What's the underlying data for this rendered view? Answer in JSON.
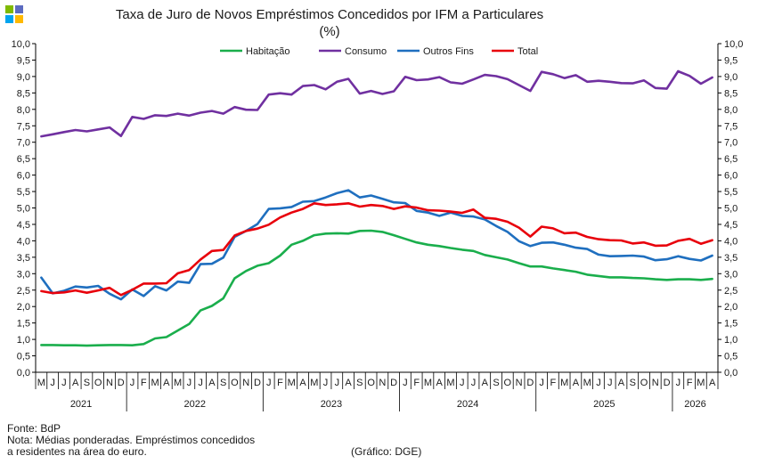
{
  "logo": {
    "colors": [
      "#7fba00",
      "#5c6bc0",
      "#00a4ef",
      "#ffb900"
    ]
  },
  "title": "Taxa de Juro de Novos Empréstimos  Concedidos por IFM a Particulares",
  "subtitle": "(%)",
  "footer": {
    "source": "Fonte: BdP",
    "note_line1": "Nota: Médias ponderadas. Empréstimos concedidos",
    "note_line2": "a residentes na área do euro.",
    "credit": "(Gráfico: DGE)"
  },
  "chart_data": {
    "type": "line",
    "ylim": [
      0,
      10
    ],
    "yticks": [
      "0,0",
      "0,5",
      "1,0",
      "1,5",
      "2,0",
      "2,5",
      "3,0",
      "3,5",
      "4,0",
      "4,5",
      "5,0",
      "5,5",
      "6,0",
      "6,5",
      "7,0",
      "7,5",
      "8,0",
      "8,5",
      "9,0",
      "9,5",
      "10,0"
    ],
    "categories": [
      "M",
      "J",
      "J",
      "A",
      "S",
      "O",
      "N",
      "D",
      "J",
      "F",
      "M",
      "A",
      "M",
      "J",
      "J",
      "A",
      "S",
      "O",
      "N",
      "D",
      "J",
      "F",
      "M",
      "A",
      "M",
      "J",
      "J",
      "A",
      "S",
      "O",
      "N",
      "D",
      "J",
      "F",
      "M",
      "A",
      "M",
      "J",
      "J",
      "A",
      "S",
      "O",
      "N",
      "D",
      "J",
      "F",
      "M",
      "A",
      "M",
      "J",
      "J",
      "A",
      "S",
      "O",
      "N",
      "D",
      "J",
      "F",
      "M",
      "A"
    ],
    "years": [
      {
        "label": "2021",
        "start": 0,
        "end": 7
      },
      {
        "label": "2022",
        "start": 8,
        "end": 19
      },
      {
        "label": "2023",
        "start": 20,
        "end": 31
      },
      {
        "label": "2024",
        "start": 32,
        "end": 43
      },
      {
        "label": "2025",
        "start": 44,
        "end": 55
      },
      {
        "label": "2026",
        "start": 56,
        "end": 59
      }
    ],
    "legend_position": "top",
    "grid": false,
    "series": [
      {
        "name": "Habitação",
        "color": "#1aae4c",
        "values": [
          0.83,
          0.83,
          0.82,
          0.82,
          0.81,
          0.82,
          0.83,
          0.83,
          0.82,
          0.86,
          1.03,
          1.07,
          1.27,
          1.47,
          1.88,
          2.02,
          2.25,
          2.86,
          3.08,
          3.24,
          3.32,
          3.55,
          3.88,
          4.0,
          4.17,
          4.22,
          4.23,
          4.22,
          4.3,
          4.31,
          4.27,
          4.17,
          4.06,
          3.95,
          3.88,
          3.84,
          3.78,
          3.73,
          3.69,
          3.57,
          3.5,
          3.43,
          3.32,
          3.22,
          3.22,
          3.16,
          3.11,
          3.06,
          2.97,
          2.93,
          2.89,
          2.89,
          2.87,
          2.86,
          2.83,
          2.81,
          2.83,
          2.83,
          2.81,
          2.84
        ]
      },
      {
        "name": "Consumo",
        "color": "#7030a0",
        "values": [
          7.18,
          7.24,
          7.31,
          7.37,
          7.33,
          7.39,
          7.45,
          7.19,
          7.77,
          7.71,
          7.82,
          7.8,
          7.87,
          7.81,
          7.9,
          7.95,
          7.87,
          8.07,
          7.99,
          7.98,
          8.45,
          8.49,
          8.45,
          8.71,
          8.74,
          8.61,
          8.84,
          8.93,
          8.48,
          8.56,
          8.47,
          8.55,
          8.99,
          8.89,
          8.91,
          8.98,
          8.82,
          8.78,
          8.91,
          9.05,
          9.01,
          8.92,
          8.74,
          8.56,
          9.14,
          9.07,
          8.95,
          9.04,
          8.84,
          8.87,
          8.84,
          8.8,
          8.79,
          8.88,
          8.65,
          8.63,
          9.16,
          9.02,
          8.78,
          8.97
        ]
      },
      {
        "name": "Outros Fins",
        "color": "#1f6fbf",
        "values": [
          2.88,
          2.4,
          2.48,
          2.61,
          2.58,
          2.63,
          2.39,
          2.22,
          2.52,
          2.32,
          2.62,
          2.49,
          2.76,
          2.72,
          3.29,
          3.3,
          3.49,
          4.12,
          4.3,
          4.51,
          4.97,
          4.99,
          5.03,
          5.19,
          5.21,
          5.32,
          5.45,
          5.54,
          5.32,
          5.38,
          5.28,
          5.17,
          5.15,
          4.91,
          4.86,
          4.76,
          4.86,
          4.76,
          4.74,
          4.65,
          4.45,
          4.27,
          3.99,
          3.84,
          3.94,
          3.95,
          3.88,
          3.79,
          3.75,
          3.58,
          3.53,
          3.54,
          3.55,
          3.52,
          3.41,
          3.44,
          3.53,
          3.45,
          3.4,
          3.55
        ]
      },
      {
        "name": "Total",
        "color": "#e8000b",
        "values": [
          2.47,
          2.41,
          2.43,
          2.49,
          2.42,
          2.49,
          2.57,
          2.35,
          2.51,
          2.7,
          2.7,
          2.71,
          3.01,
          3.11,
          3.43,
          3.69,
          3.72,
          4.16,
          4.3,
          4.37,
          4.49,
          4.71,
          4.86,
          4.97,
          5.14,
          5.09,
          5.11,
          5.14,
          5.04,
          5.09,
          5.06,
          4.97,
          5.05,
          5.01,
          4.93,
          4.92,
          4.89,
          4.85,
          4.95,
          4.7,
          4.67,
          4.58,
          4.4,
          4.13,
          4.43,
          4.38,
          4.23,
          4.25,
          4.12,
          4.05,
          4.02,
          4.01,
          3.92,
          3.95,
          3.85,
          3.86,
          4.0,
          4.06,
          3.91,
          4.02
        ]
      }
    ]
  }
}
